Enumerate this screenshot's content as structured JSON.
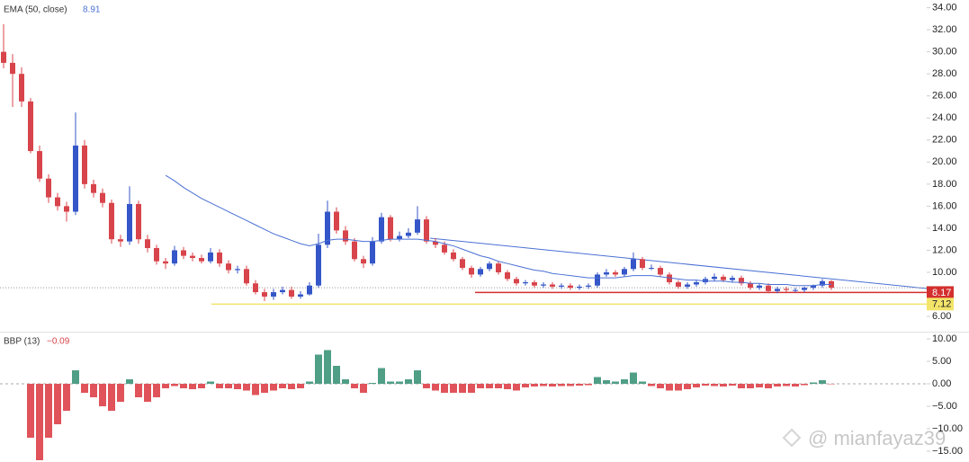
{
  "chart_data": [
    {
      "type": "candlestick",
      "candles": {
        "open": [
          30,
          29,
          28,
          25.5,
          21,
          18.5,
          16.8,
          16,
          15.5,
          21.5,
          18,
          17.2,
          16.3,
          13,
          12.8,
          16.2,
          13,
          12.2,
          11,
          10.8,
          12,
          11.5,
          11.3,
          11,
          11.8,
          10.8,
          10.2,
          10.3,
          9,
          8.2,
          7.8,
          8.2,
          8.4,
          7.8,
          8,
          8.8,
          12.5,
          15.5,
          13.8,
          12.8,
          11.2,
          10.8,
          12.8,
          15,
          13,
          13.3,
          13.6,
          14.8,
          12.8,
          12.5,
          11.8,
          11.2,
          10.4,
          9.8,
          10.3,
          10.8,
          10,
          9.4,
          9,
          9.1,
          8.8,
          8.9,
          8.7,
          8.8,
          8.6,
          8.7,
          8.8,
          9.8,
          10,
          9.8,
          10.3,
          11.2,
          10.4,
          10.4,
          9.8,
          9.1,
          8.7,
          8.9,
          9.1,
          9.4,
          9.6,
          9.3,
          9.5,
          9,
          8.6,
          8.8,
          8.3,
          8.5,
          8.4,
          8.4,
          8.6,
          8.8,
          9.2
        ],
        "high": [
          32.5,
          29.8,
          28.6,
          25.8,
          21.5,
          18.9,
          17.2,
          16.4,
          24.5,
          22,
          18.4,
          17.6,
          16.6,
          13.4,
          17.8,
          16.5,
          13.4,
          12.5,
          11.3,
          12.4,
          12.3,
          11.8,
          11.6,
          12.2,
          12.1,
          11.1,
          10.6,
          10.6,
          9.3,
          8.5,
          8.5,
          8.7,
          8.7,
          8.3,
          9.1,
          13.5,
          16.5,
          15.9,
          14.2,
          13.1,
          11.5,
          13.2,
          15.4,
          15.2,
          13.7,
          14,
          16,
          15.1,
          13.1,
          12.8,
          12.1,
          11.4,
          10.6,
          10.5,
          11,
          11,
          10.2,
          9.6,
          9.3,
          9.3,
          9.1,
          9.1,
          9,
          9,
          8.9,
          9,
          10,
          10.3,
          10.2,
          10.5,
          11.8,
          11.4,
          10.7,
          10.6,
          10,
          9.3,
          9.1,
          9.3,
          9.6,
          9.9,
          9.8,
          9.7,
          9.7,
          9.2,
          9,
          9,
          8.7,
          8.7,
          8.6,
          8.7,
          8.9,
          9.4,
          9.3
        ],
        "low": [
          28.5,
          25,
          25,
          20.8,
          18.2,
          16.3,
          15.6,
          14.6,
          15.2,
          17.6,
          16.8,
          15.9,
          12.6,
          12.3,
          12.5,
          12.6,
          11.8,
          10.7,
          10.3,
          10.6,
          11.2,
          11,
          10.8,
          10.8,
          10.5,
          9.9,
          9.9,
          8.8,
          8,
          7.4,
          7.5,
          8,
          7.6,
          7.6,
          7.9,
          8.6,
          12.2,
          13.5,
          12.5,
          11,
          10.4,
          10.6,
          12.6,
          12.8,
          12.8,
          13.1,
          13.4,
          12.6,
          12.2,
          11.6,
          11,
          10.2,
          9.5,
          9.6,
          10.1,
          9.8,
          9.2,
          8.8,
          8.8,
          8.6,
          8.6,
          8.5,
          8.5,
          8.4,
          8.4,
          8.5,
          8.6,
          9.6,
          9.6,
          9.6,
          10.1,
          10.2,
          10.2,
          9.6,
          8.9,
          8.5,
          8.5,
          8.7,
          8.9,
          9.2,
          9.1,
          9.1,
          8.8,
          8.4,
          8.4,
          8.1,
          8.1,
          8.2,
          8.2,
          8.2,
          8.4,
          8.6,
          8.4
        ],
        "close": [
          29,
          28,
          25.5,
          21,
          18.5,
          16.8,
          16,
          15.5,
          21.5,
          18,
          17.2,
          16.3,
          13,
          12.8,
          16.2,
          13,
          12.2,
          11,
          10.8,
          12,
          11.5,
          11.3,
          11,
          11.8,
          10.8,
          10.2,
          10.3,
          9,
          8.2,
          7.8,
          8.2,
          8.4,
          7.8,
          8,
          8.8,
          12.5,
          15.5,
          13.8,
          12.8,
          11.2,
          10.8,
          12.8,
          15,
          13,
          13.3,
          13.6,
          14.8,
          12.8,
          12.5,
          11.8,
          11.2,
          10.4,
          9.8,
          10.3,
          10.8,
          10,
          9.4,
          9,
          9.1,
          8.8,
          8.9,
          8.7,
          8.8,
          8.6,
          8.7,
          8.8,
          9.8,
          10,
          9.8,
          10.3,
          11.2,
          10.4,
          10.4,
          9.8,
          9.1,
          8.7,
          8.9,
          9.1,
          9.4,
          9.6,
          9.3,
          9.5,
          9,
          8.6,
          8.8,
          8.3,
          8.5,
          8.4,
          8.4,
          8.6,
          8.8,
          9.2,
          8.6
        ]
      },
      "up_color": "#3456c8",
      "down_color": "#d8444b",
      "series": [
        {
          "name": "EMA (50, close)",
          "color": "#4a70d4",
          "values": [
            null,
            null,
            null,
            null,
            null,
            null,
            null,
            null,
            null,
            null,
            null,
            null,
            null,
            null,
            null,
            null,
            null,
            null,
            18.8,
            18.3,
            17.7,
            17.2,
            16.7,
            16.3,
            15.9,
            15.5,
            15.1,
            14.7,
            14.3,
            13.9,
            13.5,
            13.2,
            12.9,
            12.6,
            12.4,
            12.6,
            12.9,
            13,
            13,
            12.9,
            12.8,
            12.8,
            12.9,
            13,
            13,
            13,
            13,
            12.9,
            12.8,
            12.6,
            12.4,
            12.1,
            11.8,
            11.5,
            11.3,
            11,
            10.8,
            10.6,
            10.4,
            10.2,
            10.1,
            9.9,
            9.8,
            9.7,
            9.6,
            9.5,
            9.5,
            9.5,
            9.5,
            9.6,
            9.7,
            9.7,
            9.7,
            9.6,
            9.5,
            9.4,
            9.3,
            9.3,
            9.2,
            9.2,
            9.2,
            9.1,
            9.1,
            9,
            9,
            8.9,
            8.9,
            8.9,
            8.8,
            8.8,
            8.8,
            8.9,
            8.91
          ]
        }
      ],
      "price_lines": [
        {
          "value": 8.17,
          "color": "#d32f2f"
        },
        {
          "value": 7.12,
          "color": "#f3e46a"
        }
      ],
      "ylim": [
        4.7,
        34.7
      ],
      "yticks": [
        {
          "value": 6,
          "label": "6.00"
        },
        {
          "value": 8,
          "label": "8.00"
        },
        {
          "value": 10,
          "label": "10.00"
        },
        {
          "value": 12,
          "label": "12.00"
        },
        {
          "value": 14,
          "label": "14.00"
        },
        {
          "value": 16,
          "label": "16.00"
        },
        {
          "value": 18,
          "label": "18.00"
        },
        {
          "value": 20,
          "label": "20.00"
        },
        {
          "value": 22,
          "label": "22.00"
        },
        {
          "value": 24,
          "label": "24.00"
        },
        {
          "value": 26,
          "label": "26.00"
        },
        {
          "value": 28,
          "label": "28.00"
        },
        {
          "value": 30,
          "label": "30.00"
        },
        {
          "value": 32,
          "label": "32.00"
        },
        {
          "value": 34,
          "label": "34.00"
        }
      ]
    },
    {
      "type": "bar",
      "title": "BBP (13)",
      "current_label": "−0.09",
      "up_color": "#4f9e86",
      "down_color": "#e0535a",
      "values": [
        null,
        null,
        null,
        -12,
        -17,
        -12,
        -9,
        -6,
        3,
        -2,
        -3,
        -5,
        -6,
        -4,
        1,
        -3,
        -4,
        -3,
        -1,
        -0.5,
        -1,
        -1.2,
        -1,
        0.5,
        -1,
        -1,
        -1.2,
        -1.5,
        -2.5,
        -2,
        -1.5,
        -1,
        -1.2,
        -1,
        0.5,
        6.5,
        7.5,
        4,
        1,
        -1,
        -2,
        0.2,
        3.5,
        0.5,
        0.5,
        1,
        3,
        -1,
        -1.5,
        -2,
        -2,
        -2,
        -2,
        -1,
        -1,
        -1,
        -1.2,
        -1.5,
        -0.8,
        -0.6,
        -0.5,
        -0.6,
        -0.5,
        -0.5,
        -0.4,
        -0.3,
        1.5,
        0.8,
        0.5,
        1,
        2.5,
        0.5,
        -0.5,
        -1,
        -1.5,
        -1.5,
        -1.2,
        -0.8,
        -0.4,
        -0.5,
        -0.6,
        -0.4,
        -1,
        -1,
        -0.8,
        -1,
        -0.6,
        -0.5,
        -0.6,
        -0.3,
        0.3,
        0.8,
        -0.09
      ],
      "ylim": [
        -17.4,
        11.4
      ],
      "yticks": [
        {
          "value": 10,
          "label": "10.00"
        },
        {
          "value": 5,
          "label": "5.00"
        },
        {
          "value": 0,
          "label": "0.00"
        },
        {
          "value": -5,
          "label": "−5.00"
        },
        {
          "value": -10,
          "label": "−10.00"
        },
        {
          "value": -15,
          "label": "−15.00"
        }
      ]
    }
  ],
  "watermark": "@ mianfayaz39"
}
